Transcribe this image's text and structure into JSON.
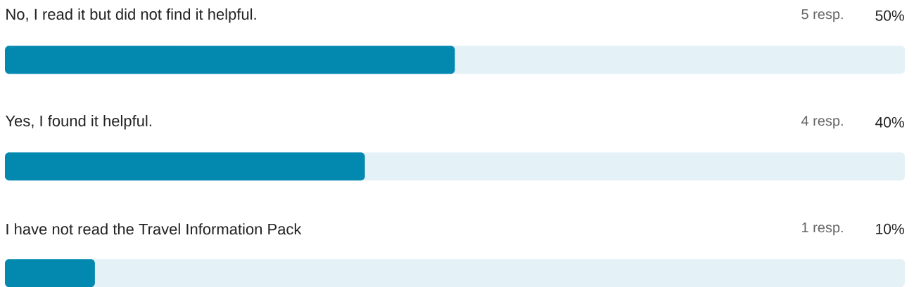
{
  "chart_data": {
    "type": "bar",
    "orientation": "horizontal",
    "categories": [
      "No, I read it but did not find it helpful.",
      "Yes, I found it helpful.",
      "I have not read the Travel Information Pack"
    ],
    "values": [
      50,
      40,
      10
    ],
    "color": "#0389b0",
    "xlim": [
      0,
      100
    ],
    "value_labels": [
      "50%",
      "40%",
      "10%"
    ],
    "annotations": [
      "5 resp.",
      "4 resp.",
      "1 resp."
    ]
  }
}
